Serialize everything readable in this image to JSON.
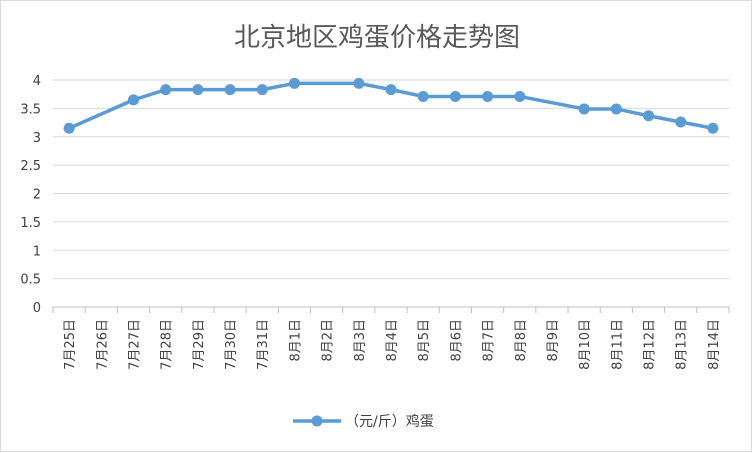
{
  "chart_data": {
    "type": "line",
    "title": "北京地区鸡蛋价格走势图",
    "categories": [
      "7月25日",
      "7月26日",
      "7月27日",
      "7月28日",
      "7月29日",
      "7月30日",
      "7月31日",
      "8月1日",
      "8月2日",
      "8月3日",
      "8月4日",
      "8月5日",
      "8月6日",
      "8月7日",
      "8月8日",
      "8月9日",
      "8月10日",
      "8月11日",
      "8月12日",
      "8月13日",
      "8月14日"
    ],
    "series": [
      {
        "name": "（元/斤）鸡蛋",
        "color": "#5b9bd5",
        "values": [
          3.15,
          null,
          3.65,
          3.83,
          3.83,
          3.83,
          3.83,
          3.94,
          null,
          3.94,
          3.83,
          3.71,
          3.71,
          3.71,
          3.71,
          null,
          3.49,
          3.49,
          3.37,
          3.26,
          3.15
        ]
      }
    ],
    "y_ticks": [
      "0",
      "0.5",
      "1",
      "1.5",
      "2",
      "2.5",
      "3",
      "3.5",
      "4"
    ],
    "ylim": [
      0,
      4
    ],
    "grid": true,
    "legend_position": "bottom",
    "gaps": "connect"
  }
}
